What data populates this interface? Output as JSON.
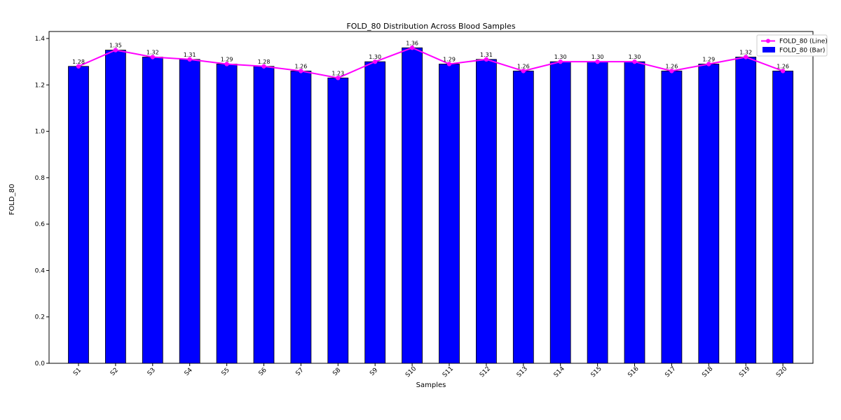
{
  "chart_data": {
    "type": "bar",
    "title": "FOLD_80 Distribution Across Blood Samples",
    "xlabel": "Samples",
    "ylabel": "FOLD_80",
    "ylim": [
      0.0,
      1.4
    ],
    "yticks": [
      "0.0",
      "0.2",
      "0.4",
      "0.6",
      "0.8",
      "1.0",
      "1.2",
      "1.4"
    ],
    "categories": [
      "S1",
      "S2",
      "S3",
      "S4",
      "S5",
      "S6",
      "S7",
      "S8",
      "S9",
      "S10",
      "S11",
      "S12",
      "S13",
      "S14",
      "S15",
      "S16",
      "S17",
      "S18",
      "S19",
      "S20"
    ],
    "series": [
      {
        "name": "FOLD_80 (Line)",
        "kind": "line",
        "color": "#ff00ff",
        "values": [
          1.28,
          1.35,
          1.32,
          1.31,
          1.29,
          1.28,
          1.26,
          1.23,
          1.3,
          1.36,
          1.29,
          1.31,
          1.26,
          1.3,
          1.3,
          1.3,
          1.26,
          1.29,
          1.32,
          1.26
        ]
      },
      {
        "name": "FOLD_80 (Bar)",
        "kind": "bar",
        "color": "#0000ff",
        "values": [
          1.28,
          1.35,
          1.32,
          1.31,
          1.29,
          1.28,
          1.26,
          1.23,
          1.3,
          1.36,
          1.29,
          1.31,
          1.26,
          1.3,
          1.3,
          1.3,
          1.26,
          1.29,
          1.32,
          1.26
        ]
      }
    ],
    "data_labels": [
      "1.28",
      "1.35",
      "1.32",
      "1.31",
      "1.29",
      "1.28",
      "1.26",
      "1.23",
      "1.30",
      "1.36",
      "1.29",
      "1.31",
      "1.26",
      "1.30",
      "1.30",
      "1.30",
      "1.26",
      "1.29",
      "1.32",
      "1.26"
    ],
    "legend_position": "top-right",
    "grid": false
  }
}
